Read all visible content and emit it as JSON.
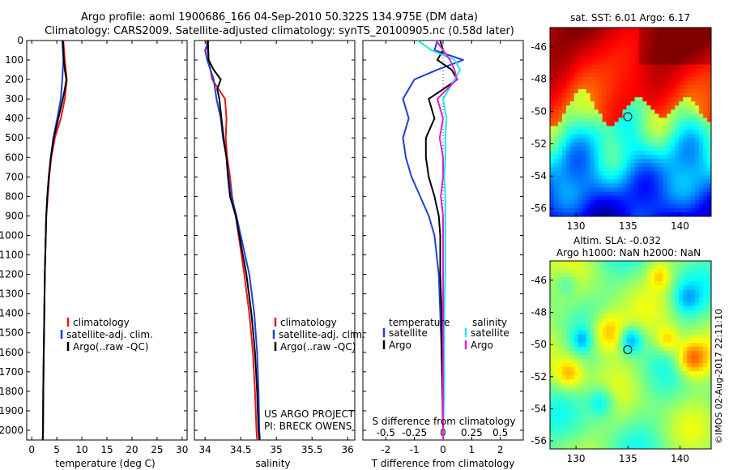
{
  "header": {
    "line1": "Argo profile: aoml 1900686_166 04-Sep-2010 50.322S 134.975E (DM data)",
    "line2": "Climatology: CARS2009. Satellite-adjusted climatology: synTS_20100905.nc (0.58d later)"
  },
  "credits": {
    "project": "US ARGO PROJECT",
    "pi": "PI: BRECK OWENS",
    "imos": "©IMOS 02-Aug-2017 22:11:10"
  },
  "colors": {
    "climatology": "#e8171b",
    "satellite": "#1f3fd6",
    "argo": "#000000",
    "s_satellite": "#22e6e6",
    "s_argo": "#e020d8"
  },
  "chart_data": [
    {
      "type": "line",
      "xlabel": "temperature (deg C)",
      "ylabel": "",
      "xlim": [
        -1,
        31
      ],
      "ylim": [
        2050,
        0
      ],
      "xticks": [
        0,
        5,
        10,
        15,
        20,
        25,
        30
      ],
      "yticks": [
        0,
        100,
        200,
        300,
        400,
        500,
        600,
        700,
        800,
        900,
        1000,
        1100,
        1200,
        1300,
        1400,
        1500,
        1600,
        1700,
        1800,
        1900,
        2000
      ],
      "legend": [
        "climatology",
        "satellite-adj. clim.",
        "Argo(..raw -QC)"
      ],
      "series": [
        {
          "name": "climatology",
          "depth": [
            0,
            100,
            200,
            300,
            400,
            500,
            600,
            700,
            800,
            900,
            1000,
            1200,
            1400,
            1600,
            1800,
            2000,
            2050
          ],
          "values": [
            6.3,
            6.6,
            7.0,
            6.6,
            5.8,
            4.6,
            3.9,
            3.5,
            3.2,
            2.9,
            2.8,
            2.6,
            2.5,
            2.4,
            2.3,
            2.25,
            2.2
          ]
        },
        {
          "name": "satellite-adj. clim.",
          "depth": [
            0,
            100,
            200,
            300,
            400,
            500,
            600,
            700,
            800,
            900,
            1000,
            1200,
            1400,
            1600,
            1800,
            2000,
            2050
          ],
          "values": [
            6.1,
            6.3,
            6.1,
            5.8,
            5.1,
            4.3,
            3.8,
            3.4,
            3.1,
            2.9,
            2.8,
            2.6,
            2.5,
            2.4,
            2.3,
            2.25,
            2.2
          ]
        },
        {
          "name": "Argo(..raw -QC)",
          "depth": [
            0,
            100,
            150,
            200,
            250,
            300,
            400,
            500,
            600,
            700,
            800,
            900,
            1000,
            1200,
            1400,
            1600,
            1800,
            2000,
            2050
          ],
          "values": [
            6.2,
            6.4,
            6.6,
            6.9,
            6.6,
            6.2,
            5.3,
            4.4,
            3.8,
            3.4,
            3.1,
            2.9,
            2.8,
            2.6,
            2.5,
            2.4,
            2.3,
            2.25,
            2.2
          ]
        }
      ]
    },
    {
      "type": "line",
      "xlabel": "salinity",
      "ylabel": "",
      "xlim": [
        33.85,
        36.1
      ],
      "ylim": [
        2050,
        0
      ],
      "xticks": [
        34,
        34.5,
        35,
        35.5,
        36
      ],
      "legend": [
        "climatology",
        "satellite-adj. clim.",
        "Argo(..raw -QC)"
      ],
      "series": [
        {
          "name": "climatology",
          "depth": [
            0,
            100,
            200,
            300,
            400,
            500,
            600,
            700,
            800,
            900,
            1000,
            1200,
            1400,
            1600,
            1800,
            2000,
            2050
          ],
          "values": [
            34.02,
            34.05,
            34.1,
            34.28,
            34.3,
            34.29,
            34.31,
            34.35,
            34.38,
            34.43,
            34.47,
            34.55,
            34.62,
            34.67,
            34.7,
            34.72,
            34.73
          ]
        },
        {
          "name": "satellite-adj. clim.",
          "depth": [
            0,
            50,
            100,
            200,
            300,
            400,
            500,
            600,
            700,
            800,
            900,
            1000,
            1200,
            1400,
            1600,
            1800,
            2000,
            2050
          ],
          "values": [
            34.05,
            34.0,
            34.03,
            34.12,
            34.16,
            34.22,
            34.25,
            34.3,
            34.33,
            34.37,
            34.44,
            34.5,
            34.62,
            34.69,
            34.73,
            34.75,
            34.76,
            34.77
          ]
        },
        {
          "name": "Argo(..raw -QC)",
          "depth": [
            0,
            100,
            150,
            200,
            250,
            300,
            400,
            500,
            600,
            700,
            800,
            900,
            1000,
            1200,
            1400,
            1600,
            1800,
            2000,
            2050
          ],
          "values": [
            34.04,
            34.05,
            34.12,
            34.22,
            34.17,
            34.2,
            34.23,
            34.26,
            34.3,
            34.32,
            34.35,
            34.43,
            34.48,
            34.58,
            34.65,
            34.7,
            34.73,
            34.75,
            34.76
          ]
        }
      ]
    },
    {
      "type": "line",
      "xlabel": "T difference from climatology",
      "xlabel2": "S difference from climatology",
      "ylabel": "",
      "xlim": [
        -2.8,
        2.8
      ],
      "ylim": [
        2050,
        0
      ],
      "xticks": [
        -2,
        -1,
        0,
        1,
        2
      ],
      "xticks_s": [
        "-0.5",
        "-0.25",
        "0",
        "0.25",
        "0.5"
      ],
      "legend_headers": [
        "temperature",
        "salinity"
      ],
      "legend": [
        "satellite",
        "Argo",
        "satellite",
        "Argo"
      ],
      "series": [
        {
          "name": "satellite",
          "quantity": "temperature",
          "depth": [
            0,
            50,
            100,
            150,
            200,
            300,
            400,
            500,
            600,
            700,
            800,
            900,
            1000,
            1200,
            1400,
            1600,
            1800,
            2000,
            2050
          ],
          "values": [
            -0.2,
            -0.3,
            0.7,
            -0.2,
            -1.0,
            -1.4,
            -1.2,
            -1.4,
            -1.3,
            -1.1,
            -0.8,
            -0.5,
            -0.3,
            -0.15,
            -0.1,
            -0.05,
            -0.02,
            0.0,
            0.0
          ]
        },
        {
          "name": "Argo",
          "quantity": "temperature",
          "depth": [
            0,
            50,
            100,
            150,
            200,
            300,
            400,
            500,
            600,
            700,
            800,
            900,
            1000,
            1200,
            1400,
            1600,
            1800,
            2000,
            2050
          ],
          "values": [
            -0.1,
            0.0,
            -0.2,
            0.3,
            0.5,
            -0.5,
            -0.3,
            -0.6,
            -0.6,
            -0.5,
            -0.3,
            -0.15,
            -0.1,
            -0.1,
            -0.05,
            -0.05,
            -0.02,
            0.0,
            0.0
          ]
        },
        {
          "name": "satellite",
          "quantity": "salinity",
          "depth": [
            0,
            50,
            100,
            150,
            200,
            300,
            400,
            500,
            600,
            700,
            800,
            900,
            1000,
            1200,
            1400,
            1600,
            1800,
            2000,
            2050
          ],
          "values": [
            -0.22,
            -0.1,
            0.1,
            0.15,
            0.1,
            0.0,
            0.03,
            0.02,
            0.02,
            0.01,
            0.02,
            0.02,
            0.02,
            0.02,
            0.01,
            0.01,
            0.01,
            0.0,
            0.0
          ]
        },
        {
          "name": "Argo",
          "quantity": "salinity",
          "depth": [
            0,
            50,
            100,
            150,
            200,
            300,
            400,
            500,
            600,
            700,
            800,
            900,
            1000,
            1200,
            1400,
            1600,
            1800,
            2000,
            2050
          ],
          "values": [
            -0.06,
            0.0,
            0.06,
            0.1,
            0.12,
            -0.05,
            0.0,
            -0.03,
            0.0,
            0.0,
            -0.02,
            0.0,
            0.0,
            0.0,
            0.0,
            0.0,
            0.0,
            0.0,
            0.0
          ]
        }
      ]
    },
    {
      "type": "heatmap",
      "title": "sat. SST: 6.01  Argo: 6.17",
      "xlim": [
        127.5,
        143
      ],
      "ylim": [
        -56.5,
        -44.8
      ],
      "xticks": [
        130,
        135,
        140
      ],
      "yticks": [
        -46,
        -48,
        -50,
        -52,
        -54,
        -56
      ],
      "marker": {
        "lon": 134.975,
        "lat": -50.322
      },
      "colormap": "jet"
    },
    {
      "type": "heatmap",
      "title": "Altim. SLA: -0.032",
      "subtitle": "Argo h1000: NaN h2000: NaN",
      "xlim": [
        127.5,
        143
      ],
      "ylim": [
        -56.5,
        -44.8
      ],
      "xticks": [
        130,
        135,
        140
      ],
      "yticks": [
        -46,
        -48,
        -50,
        -52,
        -54,
        -56
      ],
      "marker": {
        "lon": 134.975,
        "lat": -50.322
      },
      "colormap": "jet"
    }
  ]
}
